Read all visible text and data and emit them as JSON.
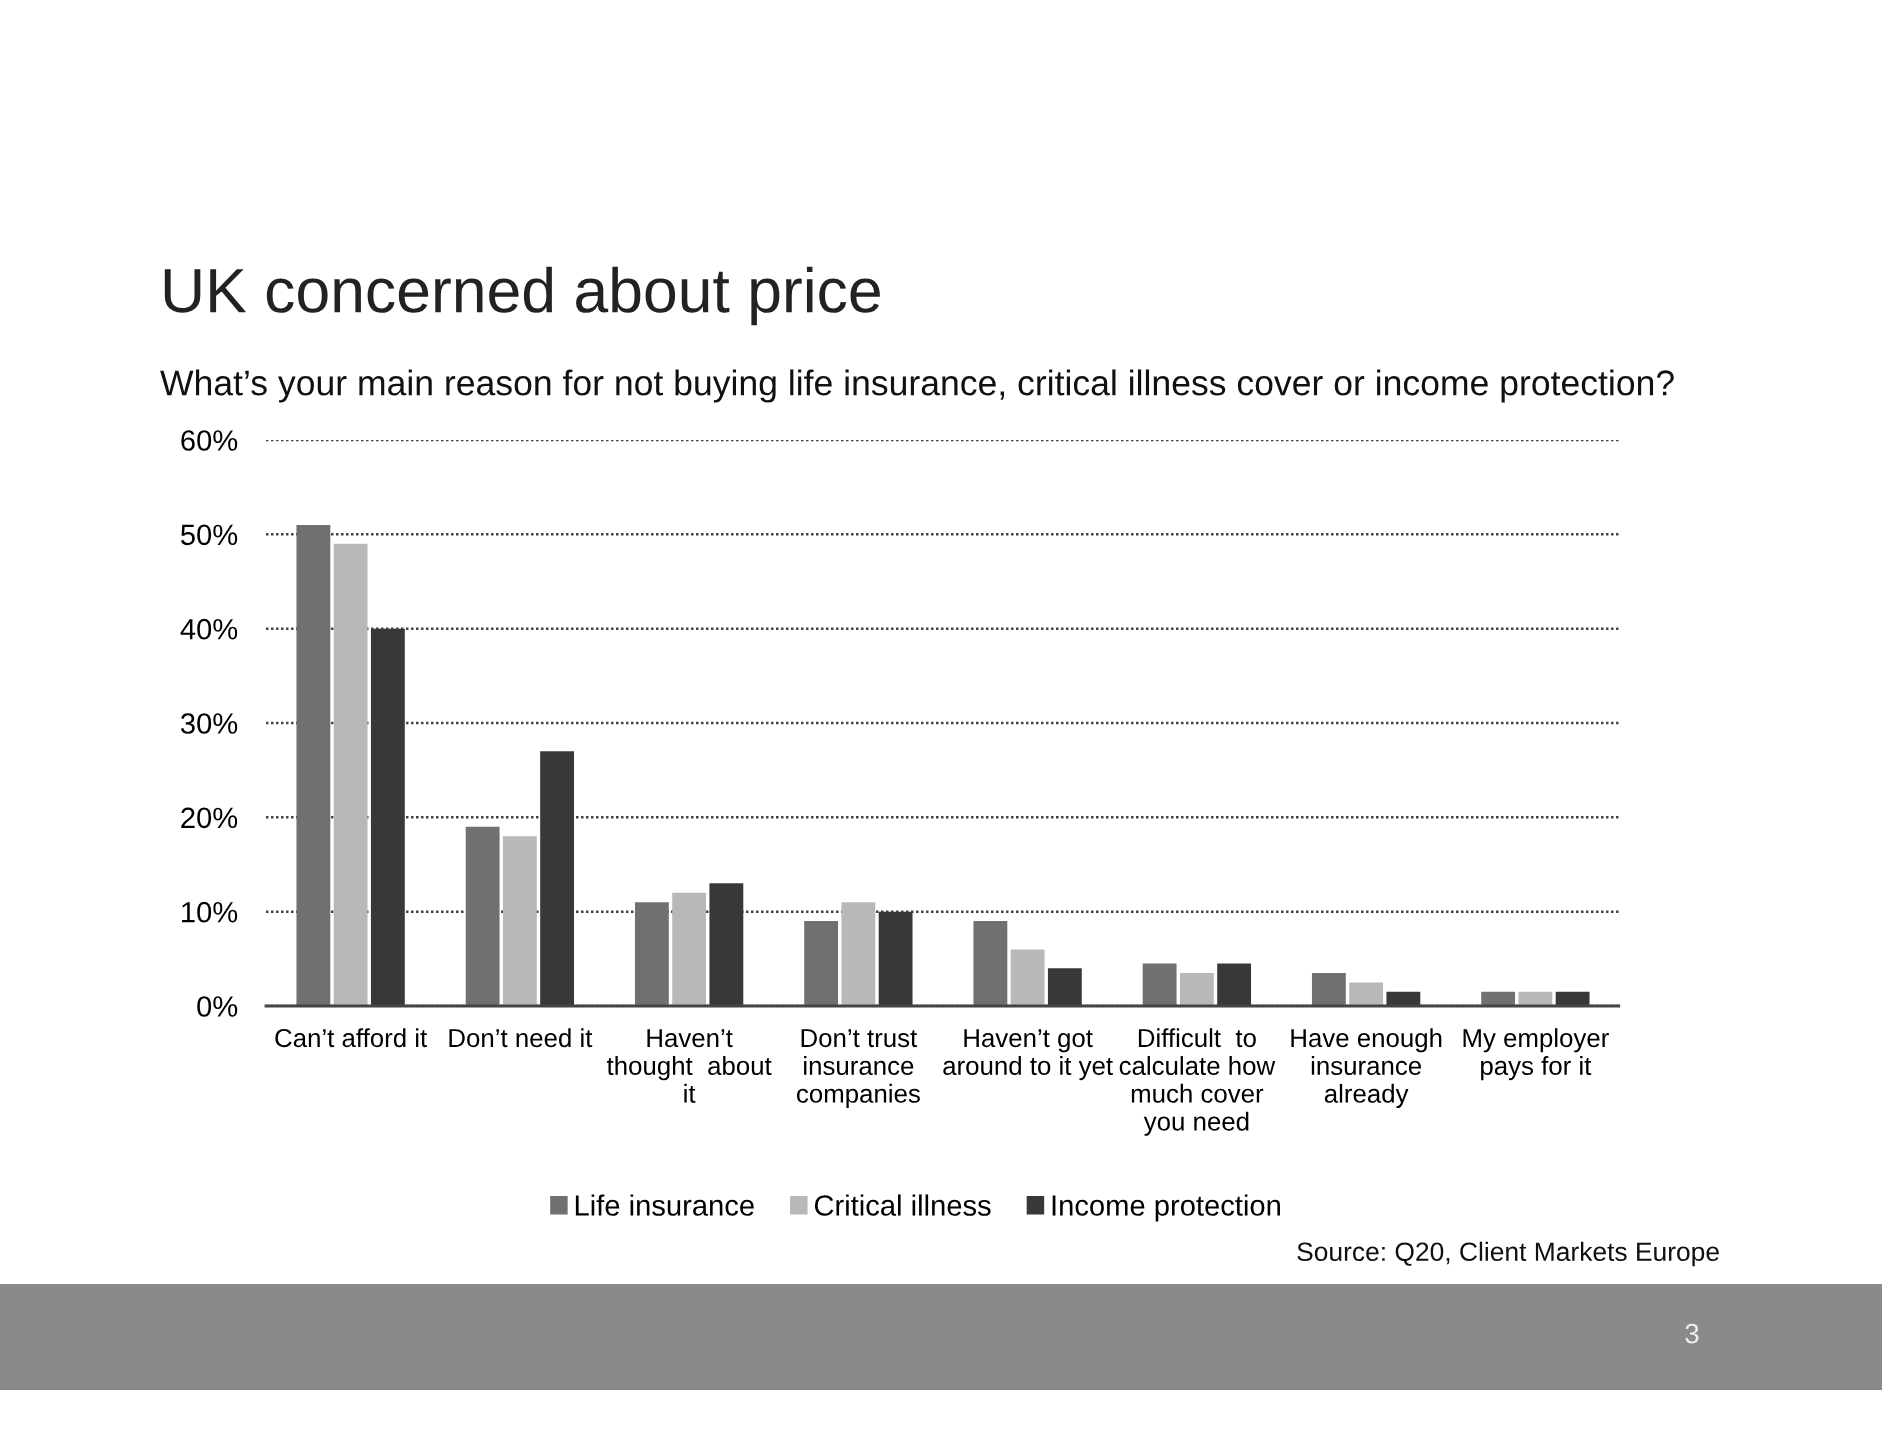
{
  "chart_data": {
    "type": "bar",
    "title": "UK concerned about price",
    "subtitle": "What’s your main reason for not buying life insurance, critical illness cover or income protection?",
    "categories": [
      "Can’t afford it",
      "Don’t need it",
      "Haven’t\nthought  about\nit",
      "Don’t trust\ninsurance\ncompanies",
      "Haven’t got\naround to it yet",
      "Difficult  to\ncalculate how\nmuch cover\nyou need",
      "Have enough\ninsurance\nalready",
      "My employer\npays for it"
    ],
    "series": [
      {
        "name": "Life insurance",
        "color": "#707070",
        "values": [
          51,
          19,
          11,
          9,
          9,
          4.5,
          3.5,
          1.5
        ]
      },
      {
        "name": "Critical illness",
        "color": "#b8b8b8",
        "values": [
          49,
          18,
          12,
          11,
          6,
          3.5,
          2.5,
          1.5
        ]
      },
      {
        "name": "Income protection",
        "color": "#383838",
        "values": [
          40,
          27,
          13,
          10,
          4,
          4.5,
          1.5,
          1.5
        ]
      }
    ],
    "ylim": [
      0,
      60
    ],
    "yticks": [
      {
        "value": 0,
        "label": "0%"
      },
      {
        "value": 10,
        "label": "10%"
      },
      {
        "value": 20,
        "label": "20%"
      },
      {
        "value": 30,
        "label": "30%"
      },
      {
        "value": 40,
        "label": "40%"
      },
      {
        "value": 50,
        "label": "50%"
      },
      {
        "value": 60,
        "label": "60%"
      }
    ],
    "grid": "y",
    "legend": "bottom",
    "annotations": [
      "Source: Q20, Client Markets Europe",
      "3"
    ]
  }
}
